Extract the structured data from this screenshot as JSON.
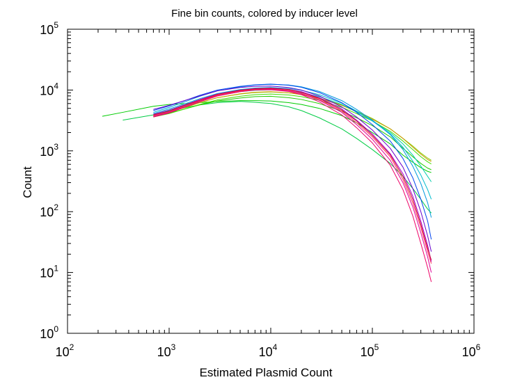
{
  "chart_data": {
    "type": "line",
    "title": "Fine bin counts, colored by inducer level",
    "xlabel": "Estimated Plasmid Count",
    "ylabel": "Count",
    "xscale": "log",
    "yscale": "log",
    "xlim": [
      100,
      1000000
    ],
    "ylim": [
      1,
      100000
    ],
    "x_ticks": [
      {
        "base": "10",
        "exp": "2",
        "value": 100
      },
      {
        "base": "10",
        "exp": "3",
        "value": 1000
      },
      {
        "base": "10",
        "exp": "4",
        "value": 10000
      },
      {
        "base": "10",
        "exp": "5",
        "value": 100000
      },
      {
        "base": "10",
        "exp": "6",
        "value": 1000000
      }
    ],
    "y_ticks": [
      {
        "base": "10",
        "exp": "0",
        "value": 1
      },
      {
        "base": "10",
        "exp": "1",
        "value": 10
      },
      {
        "base": "10",
        "exp": "2",
        "value": 100
      },
      {
        "base": "10",
        "exp": "3",
        "value": 1000
      },
      {
        "base": "10",
        "exp": "4",
        "value": 10000
      },
      {
        "base": "10",
        "exp": "5",
        "value": 100000
      }
    ],
    "grid": false,
    "legend": "none",
    "x": [
      220,
      350,
      700,
      1000,
      1500,
      2000,
      3000,
      5000,
      7000,
      10000,
      15000,
      20000,
      30000,
      50000,
      70000,
      100000,
      150000,
      200000,
      250000,
      300000,
      350000,
      380000
    ],
    "series": [
      {
        "color": "#00cc00",
        "values": [
          3700,
          4300,
          5400,
          5800,
          6000,
          6200,
          6500,
          6700,
          6700,
          6600,
          6200,
          5800,
          5000,
          3800,
          2900,
          2000,
          1300,
          850,
          650,
          530,
          460,
          440
        ]
      },
      {
        "color": "#00cc44",
        "values": [
          null,
          3200,
          3900,
          4600,
          5200,
          5700,
          6200,
          6500,
          6300,
          6000,
          5300,
          4600,
          3500,
          2300,
          1600,
          1050,
          620,
          380,
          240,
          160,
          110,
          95
        ]
      },
      {
        "color": "#22cc00",
        "values": [
          null,
          null,
          3700,
          4200,
          5000,
          5700,
          6600,
          7400,
          7800,
          7900,
          7500,
          7000,
          6000,
          4500,
          3500,
          2600,
          1700,
          1100,
          800,
          620,
          520,
          490
        ]
      },
      {
        "color": "#44dd00",
        "values": [
          null,
          null,
          3600,
          4100,
          5000,
          5800,
          6900,
          7900,
          8400,
          8600,
          8300,
          7800,
          6800,
          5200,
          4100,
          3100,
          2100,
          1450,
          1050,
          800,
          660,
          610
        ]
      },
      {
        "color": "#88cc00",
        "values": [
          null,
          null,
          3700,
          4300,
          5300,
          6200,
          7500,
          8600,
          9100,
          9300,
          9000,
          8500,
          7400,
          5700,
          4500,
          3400,
          2300,
          1600,
          1200,
          920,
          760,
          700
        ]
      },
      {
        "color": "#cc9900",
        "values": [
          null,
          null,
          3700,
          4300,
          5300,
          6200,
          7500,
          8700,
          9200,
          9400,
          9000,
          8400,
          7300,
          5600,
          4400,
          3300,
          2300,
          1600,
          1150,
          880,
          720,
          670
        ]
      },
      {
        "color": "#00ccaa",
        "values": [
          null,
          null,
          3900,
          4600,
          5700,
          6700,
          8100,
          9400,
          9900,
          10100,
          9700,
          9100,
          7800,
          5800,
          4400,
          3100,
          2000,
          1300,
          850,
          560,
          380,
          310
        ]
      },
      {
        "color": "#00bbcc",
        "values": [
          null,
          null,
          4100,
          4900,
          6100,
          7200,
          8800,
          10200,
          10800,
          11000,
          10600,
          9900,
          8400,
          6100,
          4500,
          3100,
          1900,
          1150,
          680,
          400,
          230,
          160
        ]
      },
      {
        "color": "#0099dd",
        "values": [
          null,
          null,
          4300,
          5200,
          6600,
          7900,
          9700,
          11300,
          12100,
          12400,
          12100,
          11300,
          9500,
          6700,
          4800,
          3200,
          1850,
          1050,
          560,
          290,
          140,
          80
        ]
      },
      {
        "color": "#0044ee",
        "values": [
          null,
          null,
          4600,
          5500,
          6900,
          8200,
          10000,
          11500,
          12200,
          12500,
          12000,
          11100,
          9100,
          6200,
          4300,
          2700,
          1450,
          750,
          360,
          160,
          70,
          35
        ]
      },
      {
        "color": "#6600cc",
        "values": [
          null,
          null,
          4800,
          5600,
          6900,
          8000,
          9700,
          11000,
          11500,
          11600,
          11000,
          10000,
          8000,
          5300,
          3600,
          2200,
          1100,
          540,
          240,
          100,
          40,
          22
        ]
      },
      {
        "color": "#aa00cc",
        "values": [
          null,
          null,
          4000,
          4700,
          5900,
          7000,
          8600,
          10000,
          10600,
          10800,
          10300,
          9400,
          7500,
          4900,
          3200,
          1900,
          900,
          420,
          180,
          70,
          28,
          15
        ]
      },
      {
        "color": "#dd0099",
        "values": [
          null,
          null,
          3700,
          4300,
          5500,
          6500,
          8100,
          9500,
          10100,
          10300,
          9700,
          8700,
          6800,
          4300,
          2700,
          1550,
          700,
          300,
          120,
          45,
          18,
          10
        ]
      },
      {
        "color": "#ee0066",
        "values": [
          null,
          null,
          3600,
          4200,
          5400,
          6400,
          8000,
          9400,
          10000,
          10100,
          9500,
          8400,
          6400,
          3900,
          2400,
          1350,
          580,
          230,
          85,
          30,
          12,
          7
        ]
      },
      {
        "color": "#ff3355",
        "values": [
          null,
          null,
          3800,
          4400,
          5600,
          6700,
          8300,
          9700,
          10300,
          10500,
          9900,
          8900,
          7000,
          4500,
          2900,
          1700,
          800,
          340,
          140,
          55,
          22,
          14
        ]
      },
      {
        "color": "#cc0033",
        "values": [
          null,
          null,
          3900,
          4500,
          5800,
          6800,
          8500,
          9900,
          10500,
          10700,
          10200,
          9200,
          7300,
          4700,
          3100,
          1800,
          860,
          380,
          160,
          62,
          25,
          16
        ]
      }
    ]
  }
}
